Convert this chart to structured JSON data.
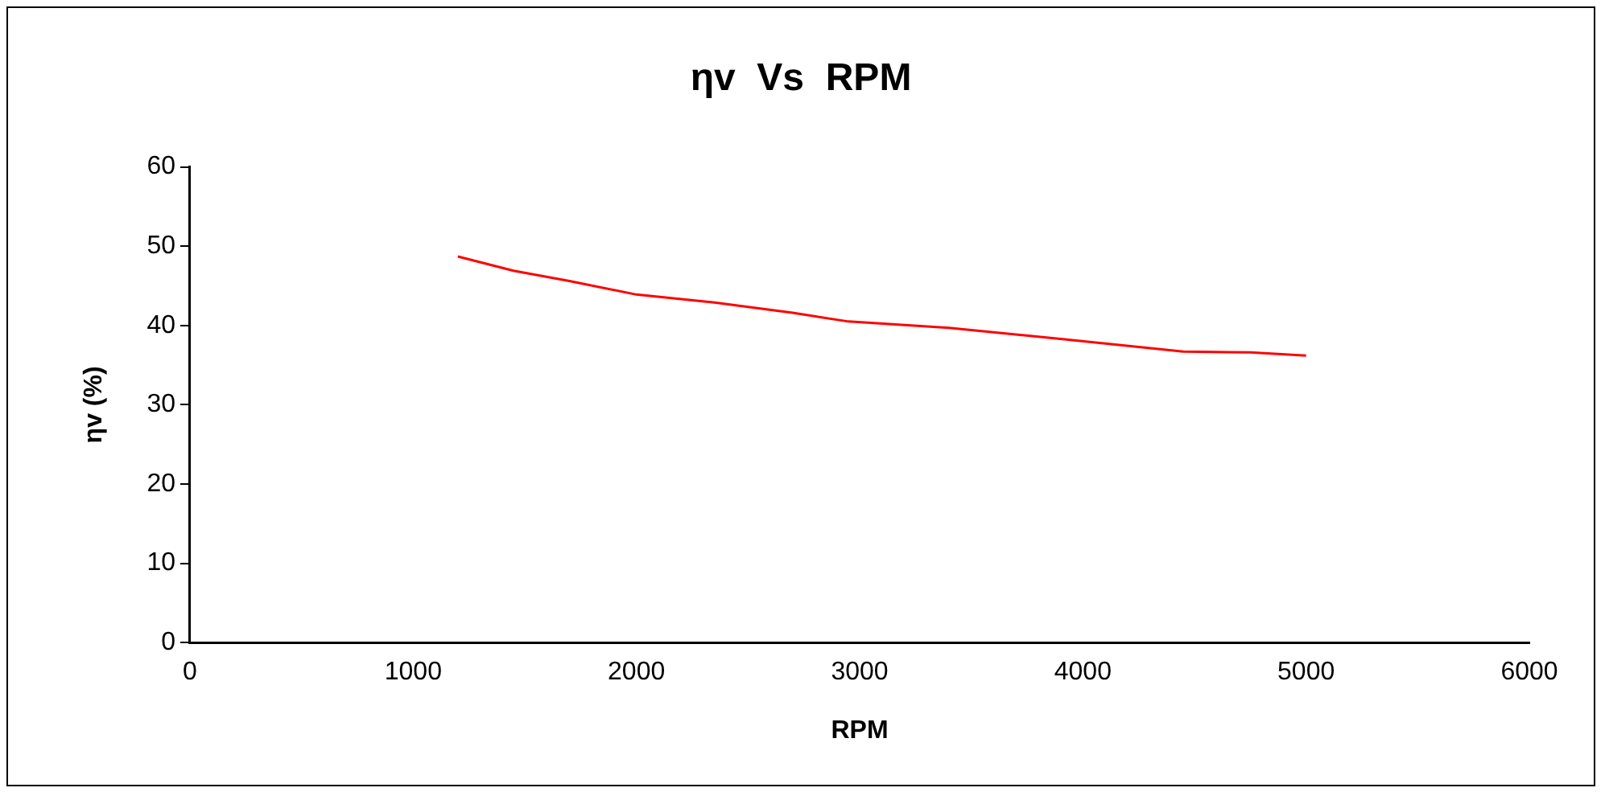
{
  "chart_data": {
    "type": "line",
    "title": "ηv  Vs  RPM",
    "xlabel": "RPM",
    "ylabel": "ηv (%)",
    "x": [
      1200,
      1450,
      1700,
      2000,
      2350,
      2700,
      2950,
      3400,
      3900,
      4450,
      4750,
      5000
    ],
    "series": [
      {
        "color": "#ff0000",
        "values": [
          48.7,
          46.9,
          45.6,
          43.9,
          42.9,
          41.6,
          40.5,
          39.7,
          38.3,
          36.7,
          36.6,
          36.2
        ]
      }
    ],
    "xlim": [
      0,
      6000
    ],
    "xticks": [
      0,
      1000,
      2000,
      3000,
      4000,
      5000,
      6000
    ],
    "ylim": [
      0,
      60
    ],
    "yticks": [
      0,
      10,
      20,
      30,
      40,
      50,
      60
    ],
    "grid": false,
    "legend": false,
    "marker": "none",
    "line_style": "solid"
  }
}
